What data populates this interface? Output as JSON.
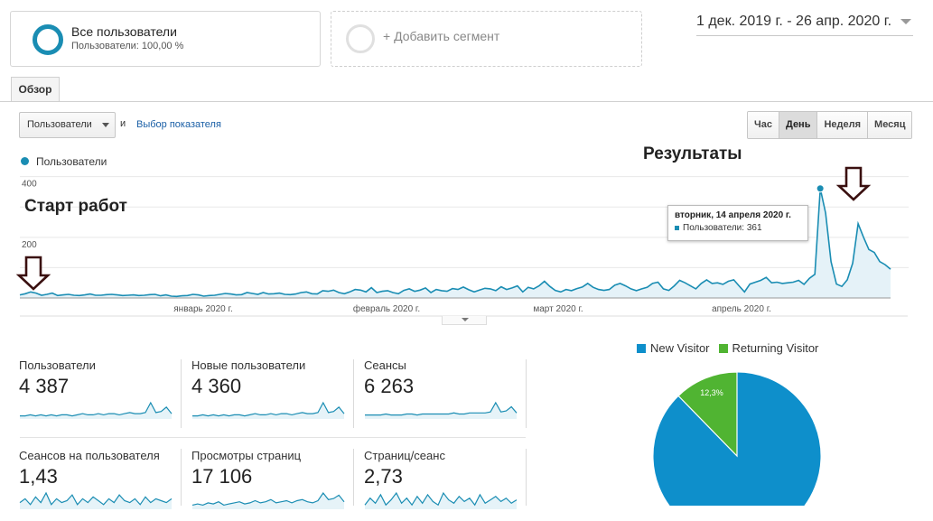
{
  "segment": {
    "title": "Все пользователи",
    "subtitle": "Пользователи: 100,00 %",
    "add_label": "+ Добавить сегмент"
  },
  "date_range": "1 дек. 2019 г. - 26 апр. 2020 г.",
  "tab": "Обзор",
  "controls": {
    "metric": "Пользователи",
    "and": "и",
    "pick_metric": "Выбор показателя",
    "granularity": [
      "Час",
      "День",
      "Неделя",
      "Месяц"
    ],
    "granularity_active": "День"
  },
  "chart": {
    "legend": "Пользователи",
    "y_ticks": [
      "400",
      "200"
    ],
    "x_ticks": [
      "январь 2020 г.",
      "февраль 2020 г.",
      "март 2020 г.",
      "апрель 2020 г."
    ],
    "series_color": "#1a8db3"
  },
  "annotations": {
    "start": "Старт работ",
    "results": "Результаты"
  },
  "tooltip": {
    "date": "вторник, 14 апреля 2020 г.",
    "row": "Пользователи: 361"
  },
  "cards": [
    {
      "label": "Пользователи",
      "value": "4 387"
    },
    {
      "label": "Новые пользователи",
      "value": "4 360"
    },
    {
      "label": "Сеансы",
      "value": "6 263"
    },
    {
      "label": "Сеансов на пользователя",
      "value": "1,43"
    },
    {
      "label": "Просмотры страниц",
      "value": "17 106"
    },
    {
      "label": "Страниц/сеанс",
      "value": "2,73"
    }
  ],
  "pie": {
    "legend": [
      {
        "name": "New Visitor",
        "color": "#0e8fcb"
      },
      {
        "name": "Returning Visitor",
        "color": "#50b432"
      }
    ],
    "returning_label": "12,3%",
    "returning_share": 0.123
  },
  "chart_data": {
    "type": "line",
    "series": [
      {
        "name": "Пользователи",
        "values": [
          10,
          14,
          20,
          16,
          9,
          12,
          16,
          8,
          10,
          12,
          9,
          8,
          10,
          13,
          9,
          9,
          11,
          12,
          10,
          8,
          9,
          10,
          8,
          9,
          11,
          12,
          7,
          10,
          6,
          5,
          7,
          8,
          12,
          10,
          6,
          8,
          9,
          12,
          15,
          13,
          10,
          11,
          18,
          15,
          12,
          18,
          13,
          14,
          16,
          12,
          11,
          13,
          18,
          20,
          14,
          13,
          24,
          22,
          26,
          18,
          14,
          20,
          28,
          26,
          20,
          34,
          18,
          22,
          24,
          18,
          14,
          25,
          30,
          22,
          26,
          33,
          18,
          28,
          24,
          22,
          31,
          28,
          36,
          27,
          20,
          26,
          32,
          30,
          24,
          37,
          28,
          33,
          40,
          20,
          35,
          30,
          40,
          55,
          38,
          25,
          20,
          28,
          24,
          31,
          36,
          48,
          35,
          28,
          25,
          28,
          42,
          48,
          40,
          30,
          24,
          30,
          35,
          48,
          52,
          30,
          25,
          40,
          58,
          50,
          40,
          30,
          48,
          60,
          48,
          50,
          45,
          55,
          60,
          40,
          20,
          46,
          52,
          58,
          68,
          50,
          52,
          48,
          50,
          52,
          58,
          45,
          65,
          78,
          361,
          280,
          120,
          46,
          38,
          60,
          115,
          245,
          200,
          160,
          150,
          120,
          110,
          95
        ]
      }
    ],
    "ylim": [
      0,
      400
    ]
  }
}
